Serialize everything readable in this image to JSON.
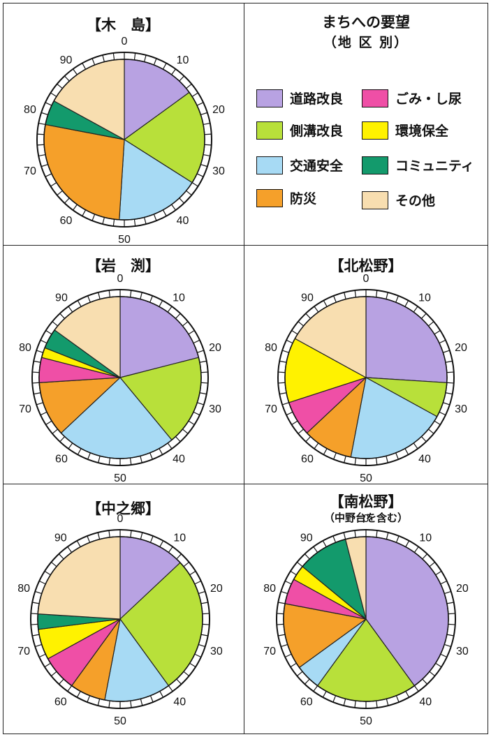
{
  "legend": {
    "title": "まちへの要望",
    "subtitle": "（地 区 別）",
    "items": [
      {
        "label": "道路改良",
        "color": "#b8a2e2"
      },
      {
        "label": "ごみ・し尿",
        "color": "#ef4fa6"
      },
      {
        "label": "側溝改良",
        "color": "#b8e03a"
      },
      {
        "label": "環境保全",
        "color": "#fff200"
      },
      {
        "label": "交通安全",
        "color": "#a7daf4"
      },
      {
        "label": "コミュニティ",
        "color": "#139a6c"
      },
      {
        "label": "防災",
        "color": "#f5a02a"
      },
      {
        "label": "その他",
        "color": "#f8deb0"
      }
    ]
  },
  "dial_ticks": [
    "0",
    "10",
    "20",
    "30",
    "40",
    "50",
    "60",
    "70",
    "80",
    "90"
  ],
  "chart_data": [
    {
      "type": "pie",
      "title": "【木　島】",
      "subtitle": "",
      "categories": [
        "道路改良",
        "ごみ・し尿",
        "側溝改良",
        "環境保全",
        "交通安全",
        "コミュニティ",
        "防災",
        "その他"
      ],
      "order": [
        "道路改良",
        "側溝改良",
        "交通安全",
        "防災",
        "ごみ・し尿",
        "環境保全",
        "コミュニティ",
        "その他"
      ],
      "values": [
        15,
        0,
        19,
        0,
        17,
        5,
        27,
        17
      ]
    },
    {
      "type": "pie",
      "title": "【岩　渕】",
      "subtitle": "",
      "categories": [
        "道路改良",
        "ごみ・し尿",
        "側溝改良",
        "環境保全",
        "交通安全",
        "コミュニティ",
        "防災",
        "その他"
      ],
      "order": [
        "道路改良",
        "側溝改良",
        "交通安全",
        "防災",
        "ごみ・し尿",
        "環境保全",
        "コミュニティ",
        "その他"
      ],
      "values": [
        21,
        5,
        18,
        2,
        24,
        4,
        11,
        15
      ]
    },
    {
      "type": "pie",
      "title": "【北松野】",
      "subtitle": "",
      "categories": [
        "道路改良",
        "ごみ・し尿",
        "側溝改良",
        "環境保全",
        "交通安全",
        "コミュニティ",
        "防災",
        "その他"
      ],
      "order": [
        "道路改良",
        "側溝改良",
        "交通安全",
        "防災",
        "ごみ・し尿",
        "環境保全",
        "コミュニティ",
        "その他"
      ],
      "values": [
        26,
        7,
        7,
        13,
        20,
        0,
        10,
        17
      ]
    },
    {
      "type": "pie",
      "title": "【中之郷】",
      "subtitle": "",
      "categories": [
        "道路改良",
        "ごみ・し尿",
        "側溝改良",
        "環境保全",
        "交通安全",
        "コミュニティ",
        "防災",
        "その他"
      ],
      "order": [
        "道路改良",
        "側溝改良",
        "交通安全",
        "防災",
        "ごみ・し尿",
        "環境保全",
        "コミュニティ",
        "その他"
      ],
      "values": [
        13,
        7,
        27,
        6,
        13,
        3,
        7,
        24
      ]
    },
    {
      "type": "pie",
      "title": "【南松野】",
      "subtitle": "（中野台を含む）",
      "categories": [
        "道路改良",
        "ごみ・し尿",
        "側溝改良",
        "環境保全",
        "交通安全",
        "コミュニティ",
        "防災",
        "その他"
      ],
      "order": [
        "道路改良",
        "側溝改良",
        "交通安全",
        "防災",
        "ごみ・し尿",
        "環境保全",
        "コミュニティ",
        "その他"
      ],
      "values": [
        40,
        5,
        20,
        3,
        5,
        10,
        13,
        4
      ]
    }
  ]
}
